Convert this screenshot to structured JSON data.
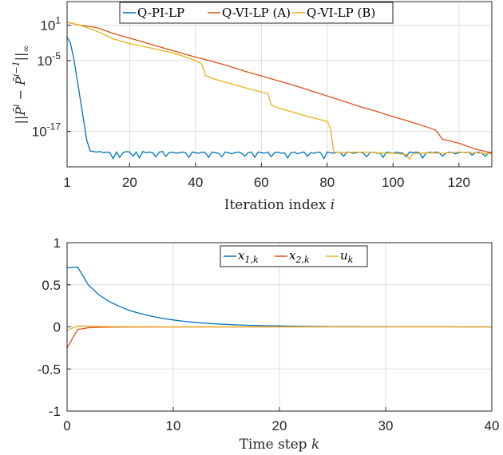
{
  "chart_data": [
    {
      "type": "line",
      "xlabel": "Iteration index i",
      "xlabel_parts": [
        "Iteration index ",
        "i"
      ],
      "ylabel": "||P̂^i − P̂^{i−1}||∞",
      "xlim": [
        1,
        130
      ],
      "ylim_log10": [
        -23,
        5
      ],
      "yscale": "log",
      "grid": true,
      "legend_position": "top",
      "x_ticks": [
        1,
        20,
        40,
        60,
        80,
        100,
        120
      ],
      "x_tick_labels": [
        "1",
        "20",
        "40",
        "60",
        "80",
        "100",
        "120"
      ],
      "y_ticks_log10": [
        1,
        -5,
        -17
      ],
      "y_tick_labels": [
        "10",
        "10",
        "10"
      ],
      "y_tick_exponents": [
        "1",
        "-5",
        "-17"
      ],
      "series": [
        {
          "name": "Q-PI-LP",
          "color": "#0072BD",
          "x": [
            1,
            2,
            3,
            4,
            5,
            6,
            7,
            8,
            9,
            10,
            11,
            12,
            13,
            14,
            15,
            16,
            17,
            18,
            19,
            20,
            21,
            22,
            23,
            24,
            25,
            26,
            27,
            28,
            29,
            30,
            31,
            32,
            33,
            34,
            35,
            36,
            37,
            38,
            39,
            40,
            41,
            42,
            43,
            44,
            45,
            46,
            47,
            48,
            49,
            50,
            51,
            52,
            53,
            54,
            55,
            56,
            57,
            58,
            59,
            60,
            61,
            62,
            63,
            64,
            65,
            66,
            67,
            68,
            69,
            70,
            71,
            72,
            73,
            74,
            75,
            76,
            77,
            78,
            79,
            80,
            81,
            82,
            83,
            84,
            85,
            86,
            87,
            88,
            89,
            90,
            91,
            92,
            93,
            94,
            95,
            96,
            97,
            98,
            99,
            100,
            101,
            102,
            103,
            104,
            105,
            106,
            107,
            108,
            109,
            110,
            111,
            112,
            113,
            114,
            115,
            116,
            117,
            118,
            119,
            120,
            121,
            122,
            123,
            124,
            125,
            126,
            127,
            128,
            129,
            130
          ],
          "log10_values": [
            -1,
            -2,
            -4.5,
            -8,
            -11.5,
            -15,
            -18.5,
            -20.3,
            -20.4,
            -20.5,
            -20.4,
            -20.6,
            -20.5,
            -20.6,
            -21.6,
            -20.5,
            -21.4,
            -20.6,
            -20.4,
            -20.5,
            -21.2,
            -20.5,
            -21.5,
            -20.4,
            -20.6,
            -20.5,
            -20.6,
            -21.3,
            -20.5,
            -20.4,
            -21.2,
            -20.6,
            -20.5,
            -20.7,
            -20.6,
            -20.5,
            -20.6,
            -21.4,
            -20.5,
            -20.6,
            -20.7,
            -20.5,
            -20.6,
            -21.4,
            -20.5,
            -20.6,
            -20.7,
            -21.3,
            -20.5,
            -20.6,
            -20.8,
            -20.6,
            -20.5,
            -20.7,
            -21.2,
            -20.6,
            -20.5,
            -21.4,
            -20.5,
            -20.6,
            -20.7,
            -20.5,
            -21.3,
            -20.6,
            -20.5,
            -20.7,
            -20.6,
            -21.5,
            -20.6,
            -20.5,
            -20.8,
            -20.6,
            -20.5,
            -21.2,
            -20.6,
            -20.7,
            -20.5,
            -20.6,
            -21.6,
            -20.5,
            -20.6,
            -20.7,
            -20.5,
            -20.6,
            -21.2,
            -20.5,
            -20.6,
            -20.7,
            -20.6,
            -20.5,
            -20.7,
            -21.3,
            -20.6,
            -20.5,
            -20.7,
            -20.6,
            -21.4,
            -20.5,
            -20.6,
            -20.7,
            -20.5,
            -20.6,
            -20.7,
            -21.3,
            -20.5,
            -20.6,
            -20.5,
            -20.6,
            -21.5,
            -20.7,
            -20.5,
            -20.6,
            -20.5,
            -20.6,
            -21.2,
            -20.7,
            -20.5,
            -20.6,
            -20.8,
            -20.6,
            -20.5,
            -20.6,
            -20.5,
            -21.0,
            -20.6,
            -20.5,
            -20.7,
            -21.2,
            -20.6,
            -20.5
          ]
        },
        {
          "name": "Q-VI-LP (A)",
          "color": "#D95319",
          "x": [
            1,
            5,
            10,
            15,
            20,
            25,
            30,
            35,
            40,
            45,
            50,
            55,
            60,
            65,
            70,
            75,
            80,
            85,
            90,
            95,
            100,
            105,
            110,
            113,
            115,
            120,
            125,
            128,
            130
          ],
          "log10_values": [
            1.5,
            1,
            0.6,
            -0.4,
            -1.2,
            -2,
            -2.8,
            -3.6,
            -4.4,
            -5.1,
            -5.9,
            -6.8,
            -7.6,
            -8.4,
            -9.2,
            -10.1,
            -11,
            -11.9,
            -12.8,
            -13.6,
            -14.5,
            -15.3,
            -16.2,
            -16.8,
            -18.3,
            -19,
            -20,
            -20.4,
            -20.6
          ]
        },
        {
          "name": "Q-VI-LP (B)",
          "color": "#EDB120",
          "x": [
            1,
            5,
            10,
            15,
            20,
            25,
            30,
            35,
            40,
            42,
            43,
            45,
            50,
            55,
            60,
            62,
            63,
            65,
            70,
            75,
            80,
            81,
            82,
            85,
            90,
            95,
            100,
            104,
            105,
            106,
            110,
            115,
            120,
            125,
            130
          ],
          "log10_values": [
            1.5,
            1,
            0,
            -1.3,
            -2.1,
            -2.7,
            -3.3,
            -4,
            -5,
            -5.6,
            -7.5,
            -8,
            -8.8,
            -9.6,
            -10.3,
            -10.6,
            -12.5,
            -13,
            -13.8,
            -14.6,
            -15.3,
            -16.5,
            -20.5,
            -20.6,
            -20.5,
            -20.6,
            -20.7,
            -20.9,
            -21.7,
            -20.8,
            -20.6,
            -20.7,
            -20.5,
            -20.6,
            -20.8
          ]
        }
      ]
    },
    {
      "type": "line",
      "xlabel": "Time step k",
      "xlabel_parts": [
        "Time step ",
        "k"
      ],
      "ylabel": "",
      "xlim": [
        0,
        40
      ],
      "ylim": [
        -1,
        1
      ],
      "grid": true,
      "legend_position": "top",
      "x_ticks": [
        0,
        10,
        20,
        30,
        40
      ],
      "x_tick_labels": [
        "0",
        "10",
        "20",
        "30",
        "40"
      ],
      "y_ticks": [
        1,
        0.5,
        0,
        -0.5,
        -1
      ],
      "y_tick_labels": [
        "1",
        "0.5",
        "0",
        "-0.5",
        "-1"
      ],
      "series": [
        {
          "name": "x1,k",
          "legend_base": "x",
          "legend_sub": "1,k",
          "color": "#0072BD",
          "x": [
            0,
            1,
            2,
            3,
            4,
            5,
            6,
            7,
            8,
            9,
            10,
            11,
            12,
            13,
            14,
            15,
            16,
            17,
            18,
            19,
            20,
            21,
            22,
            23,
            24,
            25,
            26,
            27,
            28,
            29,
            30,
            31,
            32,
            33,
            34,
            35,
            36,
            37,
            38,
            39,
            40
          ],
          "values": [
            0.7,
            0.71,
            0.5,
            0.38,
            0.3,
            0.24,
            0.19,
            0.155,
            0.125,
            0.1,
            0.082,
            0.066,
            0.054,
            0.044,
            0.036,
            0.029,
            0.024,
            0.019,
            0.016,
            0.013,
            0.011,
            0.009,
            0.007,
            0.006,
            0.005,
            0.004,
            0.0033,
            0.0027,
            0.0022,
            0.0018,
            0.0015,
            0.0012,
            0.001,
            0.0008,
            0.0007,
            0.0006,
            0.0005,
            0.0004,
            0.0003,
            0.0002,
            0.0002
          ]
        },
        {
          "name": "x2,k",
          "legend_base": "x",
          "legend_sub": "2,k",
          "color": "#D95319",
          "x": [
            0,
            1,
            2,
            3,
            4,
            5,
            10,
            20,
            30,
            40
          ],
          "values": [
            -0.25,
            -0.03,
            -0.01,
            -0.005,
            -0.003,
            -0.002,
            -0.001,
            0,
            0,
            0
          ]
        },
        {
          "name": "uk",
          "legend_base": "u",
          "legend_sub": "k",
          "color": "#EDB120",
          "x": [
            0,
            1,
            2,
            3,
            4,
            5,
            10,
            20,
            30,
            40
          ],
          "values": [
            -0.04,
            0.01,
            0.01,
            0.006,
            0.004,
            0.003,
            0.001,
            0,
            0,
            0
          ]
        }
      ]
    }
  ]
}
